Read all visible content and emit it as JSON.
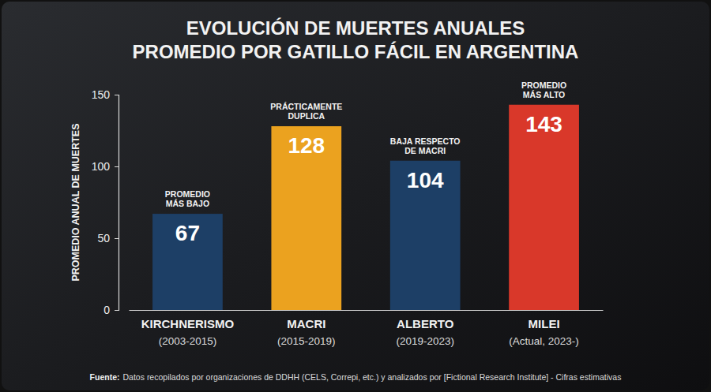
{
  "chart_data": {
    "type": "bar",
    "title": [
      "EVOLUCIÓN DE MUERTES ANUALES",
      "PROMEDIO POR GATILLO FÁCIL EN ARGENTINA"
    ],
    "y_label": "PROMEDIO ANUAL DE MUERTES",
    "categories": [
      "KIRCHNERISMO",
      "MACRI",
      "ALBERTO",
      "MILEI"
    ],
    "periods": [
      "(2003-2015)",
      "(2015-2019)",
      "(2019-2023)",
      "(Actual, 2023-)"
    ],
    "values": [
      67,
      128,
      104,
      143
    ],
    "colors": [
      "#1d3f66",
      "#eba21f",
      "#1d3f66",
      "#d9382a"
    ],
    "annotations": [
      [
        "PROMEDIO",
        "MÁS BAJO"
      ],
      [
        "PRÁCTICAMENTE",
        "DUPLICA"
      ],
      [
        "BAJA RESPECTO",
        "DE MACRI"
      ],
      [
        "PROMEDIO",
        "MÁS ALTO"
      ]
    ],
    "source_label": "Fuente:",
    "source": "Datos recopilados por organizaciones de DDHH (CELS, Correpi, etc.) y analizados por [Fictional Research Institute] - Cifras estimativas",
    "ylim": [
      0,
      150
    ],
    "yticks": [
      0,
      50,
      100,
      150
    ],
    "grid": false,
    "data_labels": true
  }
}
